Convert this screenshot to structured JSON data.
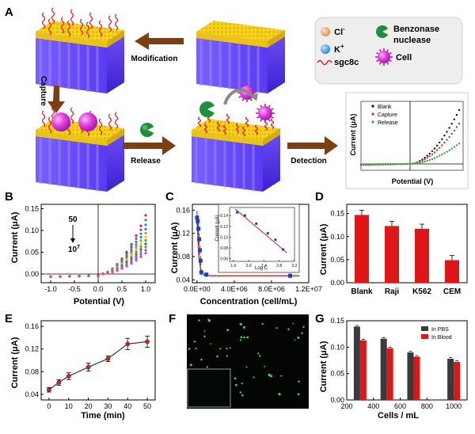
{
  "panel_labels": {
    "A": "A",
    "B": "B",
    "C": "C",
    "D": "D",
    "E": "E",
    "F": "F",
    "G": "G"
  },
  "schematic": {
    "steps": {
      "modification": "Modification",
      "capture": "Capture",
      "release": "Release",
      "detection": "Detection"
    },
    "legend": {
      "cl": "Cl",
      "cl_sup": "-",
      "k": "K",
      "k_sup": "+",
      "sgc8c": "sgc8c",
      "benzonase_line1": "Benzonase",
      "benzonase_line2": "nuclease",
      "cell": "Cell"
    },
    "colors": {
      "gold": "#f5d31c",
      "substrate": "#6b45f0",
      "arrow": "#7b3f12",
      "aptamer": "#e4232b",
      "cell": "#d62fd0",
      "enzyme": "#1f8f3b",
      "cl_ion": "#f4a66e",
      "k_ion": "#3c8ee6"
    }
  },
  "chart_data": [
    {
      "id": "inset_A",
      "type": "scatter",
      "xlabel": "Potential (V)",
      "ylabel": "Current (μA)",
      "series": [
        {
          "name": "Blank",
          "color": "#111111"
        },
        {
          "name": "Capture",
          "color": "#d13030"
        },
        {
          "name": "Release",
          "color": "#2fa84f"
        }
      ],
      "axes": "cross",
      "grid": false,
      "legend": "top-left"
    },
    {
      "id": "B",
      "type": "scatter",
      "xlabel": "Potential (V)",
      "ylabel": "Current (μA)",
      "xlim": [
        -1.2,
        1.2
      ],
      "ylim": [
        -0.02,
        0.16
      ],
      "xticks": [
        -1.0,
        -0.5,
        0.0,
        0.5,
        1.0
      ],
      "xtick_labels": [
        "-1.0",
        "-0.5",
        "0.0",
        "0.5",
        "1.0"
      ],
      "yticks": [
        0.0,
        0.05,
        0.1,
        0.15
      ],
      "ytick_labels": [
        "0.00",
        "0.05",
        "0.10",
        "0.15"
      ],
      "annotation_top": "50",
      "annotation_bottom": "10",
      "annotation_bottom_sup": "7",
      "curve_model": "I = a·(V-0.05)^1.8 for V > 0.05",
      "x": [
        -1.0,
        -0.8,
        -0.6,
        -0.4,
        -0.2,
        0.0,
        0.1,
        0.2,
        0.3,
        0.4,
        0.5,
        0.6,
        0.7,
        0.8,
        0.9,
        1.0
      ],
      "series_peak_values": [
        0.135,
        0.124,
        0.113,
        0.103,
        0.094,
        0.085,
        0.077,
        0.069,
        0.062,
        0.055,
        0.048
      ],
      "series_colors": [
        "#d7263d",
        "#8e44ad",
        "#2e86de",
        "#16a085",
        "#e67e22",
        "#f1c40f",
        "#27ae60",
        "#c0392b",
        "#3498db",
        "#9b59b6",
        "#e84393"
      ],
      "grid": false
    },
    {
      "id": "C",
      "type": "scatter",
      "xlabel": "Concentration (cell/mL)",
      "ylabel": "Current (μA)",
      "xlim": [
        -500000,
        12000000
      ],
      "ylim": [
        0.035,
        0.17
      ],
      "xticks": [
        0,
        4000000,
        8000000,
        12000000
      ],
      "xtick_labels": [
        "0.0E+00",
        "4.0E+06",
        "8.0E+06",
        "1.2E+07"
      ],
      "yticks": [
        0.04,
        0.08,
        0.12,
        0.16
      ],
      "ytick_labels": [
        "0.04",
        "0.08",
        "0.12",
        "0.16"
      ],
      "x": [
        0,
        5,
        50,
        500,
        5000,
        50000,
        500000,
        1000000,
        10000000
      ],
      "y": [
        0.147,
        0.141,
        0.128,
        0.11,
        0.091,
        0.073,
        0.053,
        0.049,
        0.047
      ],
      "error": [
        0.012,
        0.01,
        0.01,
        0.01,
        0.008,
        0.008,
        0.005,
        0.004,
        0.004
      ],
      "fit": "exponential decay",
      "inset": {
        "type": "scatter",
        "xlabel": "Log C",
        "ylabel": "Current (μA)",
        "xlim": [
          1.5,
          3.2
        ],
        "ylim": [
          0.055,
          0.155
        ],
        "xticks": [
          1.6,
          2.0,
          2.4,
          2.8,
          3.2
        ],
        "xtick_labels": [
          "1.6",
          "2.0",
          "2.4",
          "2.8",
          "3.2"
        ],
        "yticks": [
          0.06,
          0.08,
          0.1,
          0.12,
          0.14
        ],
        "ytick_labels": [
          "0.06",
          "0.08",
          "0.10",
          "0.12",
          "0.14"
        ],
        "x": [
          1.7,
          1.9,
          2.2,
          2.5,
          2.7,
          2.9
        ],
        "y": [
          0.146,
          0.14,
          0.125,
          0.107,
          0.095,
          0.077
        ],
        "fit": "linear"
      },
      "grid": false
    },
    {
      "id": "D",
      "type": "bar",
      "ylabel": "Current (μA)",
      "categories": [
        "Blank",
        "Raji",
        "K562",
        "CEM"
      ],
      "values": [
        0.147,
        0.123,
        0.117,
        0.049
      ],
      "error": [
        0.01,
        0.01,
        0.01,
        0.01
      ],
      "ylim": [
        0,
        0.17
      ],
      "yticks": [
        0,
        0.05,
        0.1,
        0.15
      ],
      "ytick_labels": [
        "0.00",
        "0.05",
        "0.10",
        "0.15"
      ],
      "color": "#e01616",
      "grid": false
    },
    {
      "id": "E",
      "type": "line",
      "xlabel": "Time (min)",
      "ylabel": "Current (μA)",
      "x": [
        0,
        5,
        10,
        20,
        30,
        40,
        50
      ],
      "y": [
        0.048,
        0.061,
        0.072,
        0.088,
        0.103,
        0.129,
        0.133
      ],
      "error": [
        0.004,
        0.005,
        0.006,
        0.007,
        0.005,
        0.01,
        0.01
      ],
      "xlim": [
        -4,
        54
      ],
      "ylim": [
        0.03,
        0.17
      ],
      "xticks": [
        0,
        10,
        20,
        30,
        40,
        50
      ],
      "xtick_labels": [
        "0",
        "10",
        "20",
        "30",
        "40",
        "50"
      ],
      "yticks": [
        0.04,
        0.08,
        0.12,
        0.16
      ],
      "ytick_labels": [
        "0.04",
        "0.08",
        "0.12",
        "0.16"
      ],
      "color": "#333333",
      "marker_color": "#d62020",
      "grid": false
    },
    {
      "id": "G",
      "type": "bar",
      "xlabel": "Cells / mL",
      "ylabel": "Current (μA)",
      "legend": "top-right",
      "x": [
        300,
        500,
        700,
        1000
      ],
      "series": [
        {
          "name": "In PBS",
          "values": [
            0.139,
            0.116,
            0.09,
            0.078
          ],
          "color": "#3a3a3a"
        },
        {
          "name": "In Blood",
          "values": [
            0.113,
            0.098,
            0.082,
            0.072
          ],
          "color": "#e01616"
        }
      ],
      "error": [
        0.002,
        0.002,
        0.002,
        0.002
      ],
      "xlim": [
        200,
        1100
      ],
      "ylim": [
        0,
        0.15
      ],
      "xticks": [
        200,
        400,
        600,
        800,
        1000
      ],
      "xtick_labels": [
        "200",
        "400",
        "600",
        "800",
        "1000"
      ],
      "yticks": [
        0,
        0.05,
        0.1,
        0.15
      ],
      "ytick_labels": [
        "0.00",
        "0.05",
        "0.10",
        "0.15"
      ],
      "grid": false
    }
  ],
  "micrograph": {
    "background": "#020502",
    "dot_color": "#3bd73b",
    "inset_border": "#bfbfbf"
  }
}
